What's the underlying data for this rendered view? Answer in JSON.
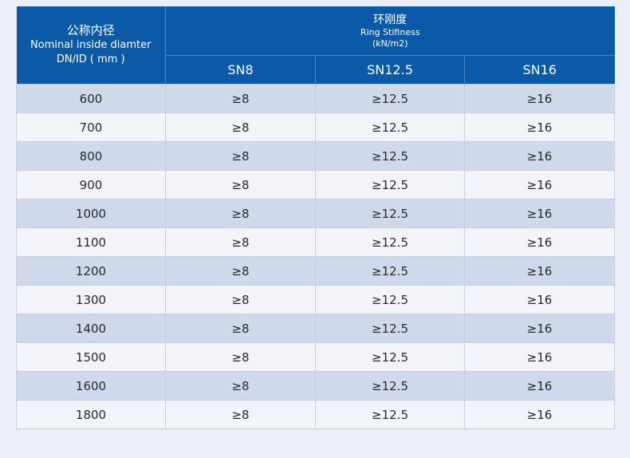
{
  "header": {
    "dn_label_cn": "公称内径",
    "dn_label_en": "Nominal inside diamter",
    "dn_label_unit": "DN/ID ( mm )",
    "ring_label_cn": "环刚度",
    "ring_label_en": "Ring Stifiness",
    "ring_label_unit": "(kN/m2)",
    "sn_columns": [
      "SN8",
      "SN12.5",
      "SN16"
    ]
  },
  "rows": [
    {
      "dn": "600",
      "sn8": "≥8",
      "sn12": "≥12.5",
      "sn16": "≥16"
    },
    {
      "dn": "700",
      "sn8": "≥8",
      "sn12": "≥12.5",
      "sn16": "≥16"
    },
    {
      "dn": "800",
      "sn8": "≥8",
      "sn12": "≥12.5",
      "sn16": "≥16"
    },
    {
      "dn": "900",
      "sn8": "≥8",
      "sn12": "≥12.5",
      "sn16": "≥16"
    },
    {
      "dn": "1000",
      "sn8": "≥8",
      "sn12": "≥12.5",
      "sn16": "≥16"
    },
    {
      "dn": "1100",
      "sn8": "≥8",
      "sn12": "≥12.5",
      "sn16": "≥16"
    },
    {
      "dn": "1200",
      "sn8": "≥8",
      "sn12": "≥12.5",
      "sn16": "≥16"
    },
    {
      "dn": "1300",
      "sn8": "≥8",
      "sn12": "≥12.5",
      "sn16": "≥16"
    },
    {
      "dn": "1400",
      "sn8": "≥8",
      "sn12": "≥12.5",
      "sn16": "≥16"
    },
    {
      "dn": "1500",
      "sn8": "≥8",
      "sn12": "≥12.5",
      "sn16": "≥16"
    },
    {
      "dn": "1600",
      "sn8": "≥8",
      "sn12": "≥12.5",
      "sn16": "≥16"
    },
    {
      "dn": "1800",
      "sn8": "≥8",
      "sn12": "≥12.5",
      "sn16": "≥16"
    }
  ],
  "colors": {
    "header_bg": "#0a5aa8",
    "row_odd": "#cfd9ec",
    "row_even": "#f3f4f9",
    "page_bg": "#eceef6"
  }
}
